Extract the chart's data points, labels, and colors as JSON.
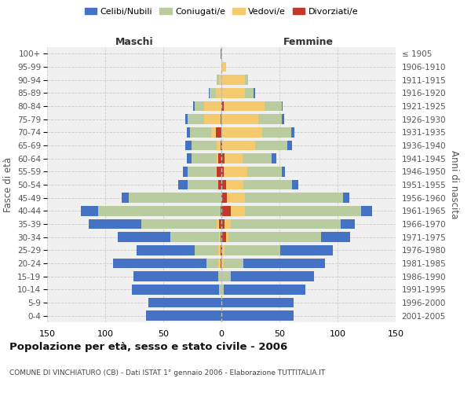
{
  "age_groups": [
    "0-4",
    "5-9",
    "10-14",
    "15-19",
    "20-24",
    "25-29",
    "30-34",
    "35-39",
    "40-44",
    "45-49",
    "50-54",
    "55-59",
    "60-64",
    "65-69",
    "70-74",
    "75-79",
    "80-84",
    "85-89",
    "90-94",
    "95-99",
    "100+"
  ],
  "birth_years": [
    "2001-2005",
    "1996-2000",
    "1991-1995",
    "1986-1990",
    "1981-1985",
    "1976-1980",
    "1971-1975",
    "1966-1970",
    "1961-1965",
    "1956-1960",
    "1951-1955",
    "1946-1950",
    "1941-1945",
    "1936-1940",
    "1931-1935",
    "1926-1930",
    "1921-1925",
    "1916-1920",
    "1911-1915",
    "1906-1910",
    "≤ 1905"
  ],
  "colors": {
    "celibi": "#4472c4",
    "coniugati": "#b8cca0",
    "vedovi": "#f5c96e",
    "divorziati": "#c0392b"
  },
  "maschi": {
    "celibi": [
      65,
      63,
      75,
      73,
      80,
      50,
      45,
      45,
      15,
      6,
      8,
      4,
      4,
      5,
      3,
      2,
      1,
      1,
      0,
      0,
      1
    ],
    "coniugati": [
      0,
      0,
      2,
      3,
      10,
      20,
      42,
      65,
      105,
      80,
      26,
      24,
      22,
      22,
      18,
      14,
      8,
      5,
      2,
      0,
      0
    ],
    "vedovi": [
      0,
      0,
      0,
      0,
      2,
      2,
      1,
      2,
      0,
      0,
      0,
      1,
      1,
      3,
      4,
      14,
      15,
      5,
      2,
      0,
      0
    ],
    "divorziati": [
      0,
      0,
      0,
      0,
      1,
      1,
      1,
      2,
      1,
      0,
      3,
      4,
      3,
      1,
      5,
      1,
      0,
      0,
      0,
      0,
      0
    ]
  },
  "femmine": {
    "nubili": [
      62,
      62,
      70,
      72,
      70,
      45,
      25,
      12,
      10,
      5,
      5,
      3,
      4,
      4,
      3,
      2,
      1,
      1,
      0,
      0,
      0
    ],
    "coniugate": [
      0,
      0,
      2,
      8,
      17,
      48,
      80,
      95,
      100,
      85,
      42,
      30,
      25,
      28,
      25,
      20,
      15,
      8,
      3,
      0,
      0
    ],
    "vedove": [
      0,
      0,
      0,
      0,
      2,
      2,
      2,
      5,
      12,
      15,
      15,
      20,
      15,
      28,
      35,
      32,
      35,
      20,
      20,
      4,
      0
    ],
    "divorziate": [
      0,
      0,
      0,
      0,
      0,
      1,
      4,
      3,
      8,
      5,
      4,
      2,
      3,
      1,
      0,
      0,
      2,
      0,
      0,
      0,
      0
    ]
  },
  "xlim": 150,
  "title": "Popolazione per età, sesso e stato civile - 2006",
  "subtitle": "COMUNE DI VINCHIATURO (CB) - Dati ISTAT 1° gennaio 2006 - Elaborazione TUTTITALIA.IT",
  "ylabel_left": "Fasce di età",
  "ylabel_right": "Anni di nascita",
  "xlabel_left": "Maschi",
  "xlabel_right": "Femmine",
  "bg_color": "#f0f0f0",
  "grid_color": "#cccccc"
}
